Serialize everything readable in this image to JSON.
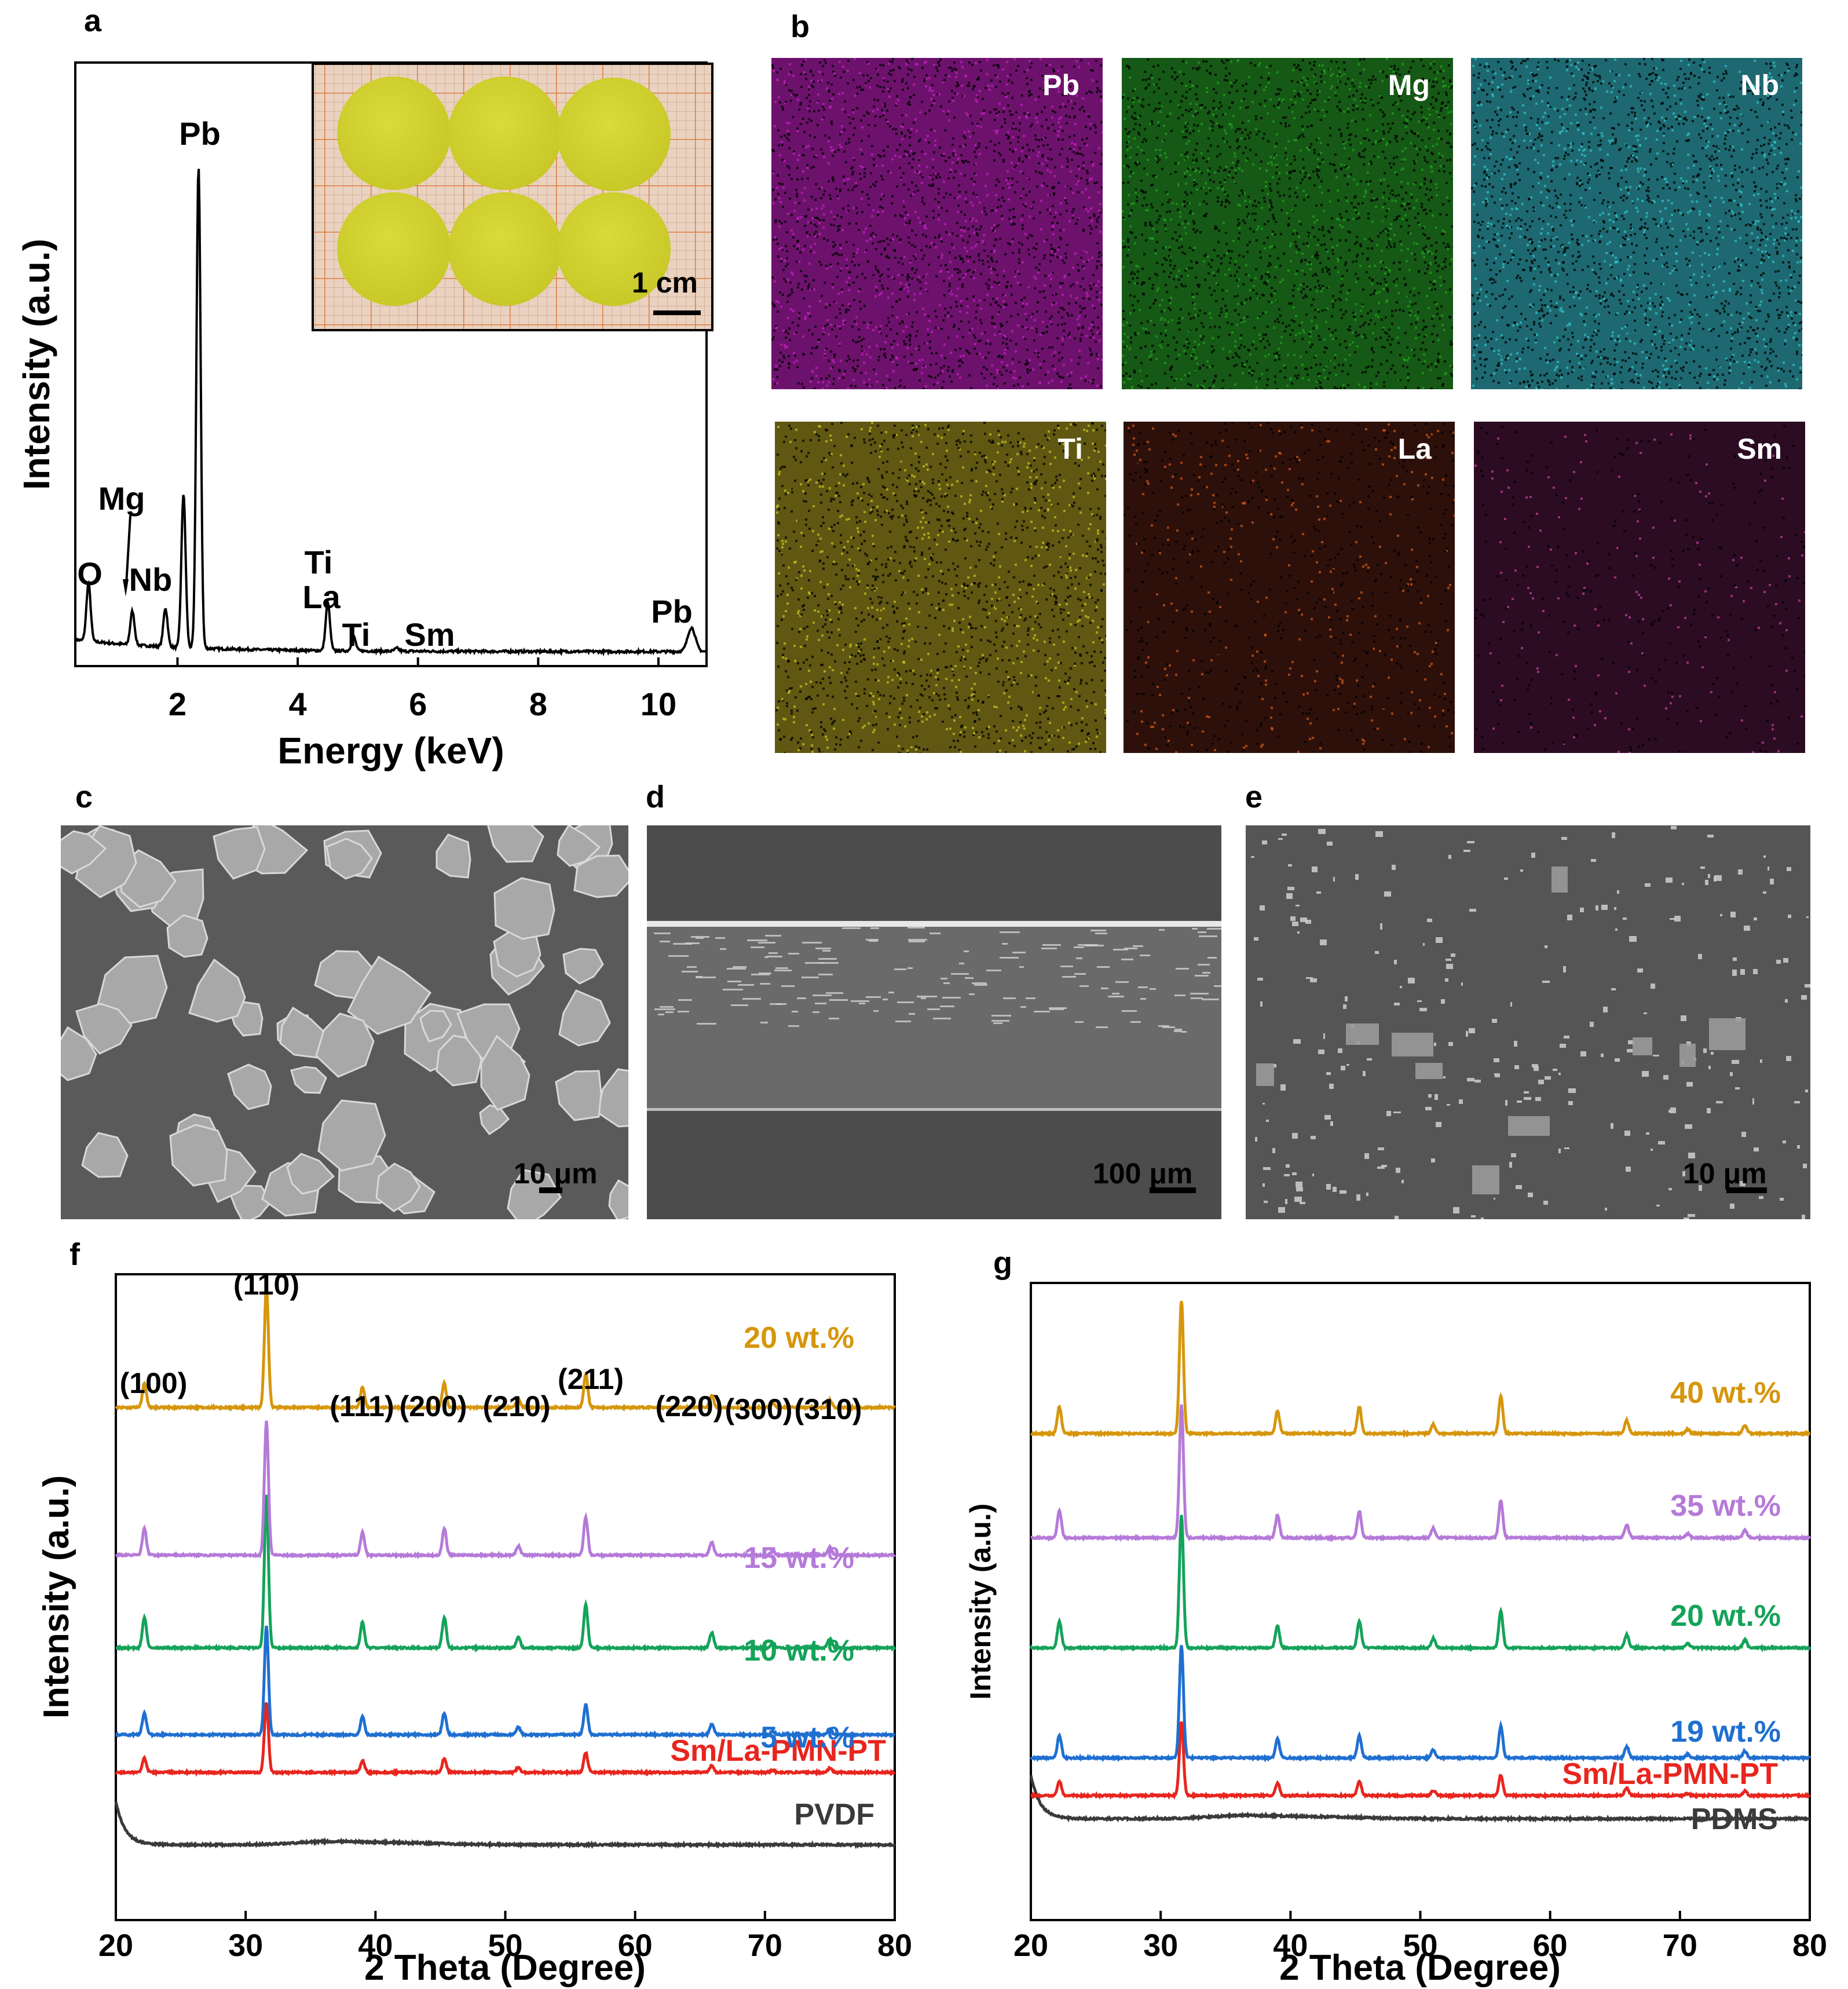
{
  "panels": {
    "a": {
      "letter": "a",
      "xlabel": "Energy (keV)",
      "ylabel": "Intensity (a.u.)",
      "inset_scale": "1 cm",
      "peaks": [
        "O",
        "Mg",
        "Nb",
        "Pb",
        "Ti",
        "La",
        "Ti",
        "Sm",
        "Pb"
      ]
    },
    "b": {
      "letter": "b",
      "maps": [
        {
          "label": "Pb",
          "color": "#c020c0"
        },
        {
          "label": "Mg",
          "color": "#20a020"
        },
        {
          "label": "Nb",
          "color": "#30c0c8"
        },
        {
          "label": "Ti",
          "color": "#c8c020"
        },
        {
          "label": "La",
          "color": "#d05818"
        },
        {
          "label": "Sm",
          "color": "#c040a0"
        }
      ]
    },
    "c": {
      "letter": "c",
      "scale": "10 μm"
    },
    "d": {
      "letter": "d",
      "scale": "100 μm"
    },
    "e": {
      "letter": "e",
      "scale": "10 μm"
    },
    "f": {
      "letter": "f",
      "xlabel": "2 Theta (Degree)",
      "ylabel": "Intensity (a.u.)"
    },
    "g": {
      "letter": "g",
      "xlabel": "2 Theta (Degree)",
      "ylabel": "Intensity (a.u.)"
    }
  },
  "chart_data": [
    {
      "id": "a",
      "type": "line",
      "xlabel": "Energy (keV)",
      "ylabel": "Intensity (a.u.)",
      "xlim": [
        0.3,
        10.8
      ],
      "ylim": [
        0,
        100
      ],
      "xticks": [
        2,
        4,
        6,
        8,
        10
      ],
      "peaks": [
        {
          "x": 0.52,
          "y": 12,
          "label": "O"
        },
        {
          "x": 1.25,
          "y": 7,
          "label": "Mg"
        },
        {
          "x": 1.8,
          "y": 8,
          "label": "Nb"
        },
        {
          "x": 2.1,
          "y": 32,
          "label": ""
        },
        {
          "x": 2.35,
          "y": 100,
          "label": "Pb"
        },
        {
          "x": 4.5,
          "y": 10,
          "label": "Ti La"
        },
        {
          "x": 4.93,
          "y": 3,
          "label": "Ti"
        },
        {
          "x": 5.65,
          "y": 0.6,
          "label": "Sm"
        },
        {
          "x": 10.55,
          "y": 5,
          "label": "Pb"
        }
      ]
    },
    {
      "id": "f",
      "type": "line",
      "xlabel": "2 Theta (Degree)",
      "ylabel": "Intensity (a.u.)",
      "xlim": [
        20,
        80
      ],
      "xticks": [
        20,
        30,
        40,
        50,
        60,
        70,
        80
      ],
      "hkl": [
        {
          "x": 22.2,
          "label": "(100)"
        },
        {
          "x": 31.6,
          "label": "(110)"
        },
        {
          "x": 39.0,
          "label": "(111)"
        },
        {
          "x": 45.3,
          "label": "(200)"
        },
        {
          "x": 51.0,
          "label": "(210)"
        },
        {
          "x": 56.2,
          "label": "(211)"
        },
        {
          "x": 65.9,
          "label": "(220)"
        },
        {
          "x": 70.6,
          "label": "(300)"
        },
        {
          "x": 75.0,
          "label": "(310)"
        }
      ],
      "peak_positions": [
        22.2,
        31.6,
        39.0,
        45.3,
        51.0,
        56.2,
        65.9,
        70.6,
        75.0
      ],
      "peak_rel_heights": [
        0.2,
        1.0,
        0.17,
        0.2,
        0.07,
        0.28,
        0.1,
        0.03,
        0.06
      ],
      "series": [
        {
          "name": "PVDF",
          "color": "#3a3a3a",
          "scale": 0
        },
        {
          "name": "Sm/La-PMN-PT",
          "color": "#e8251e",
          "scale": 0.55
        },
        {
          "name": "5 wt.%",
          "color": "#1f6fd1",
          "scale": 0.85
        },
        {
          "name": "10 wt.%",
          "color": "#14a35a",
          "scale": 1.2
        },
        {
          "name": "15 wt.%",
          "color": "#b57ad9",
          "scale": 1.05
        },
        {
          "name": "20 wt.%",
          "color": "#d6960c",
          "scale": 0.95
        }
      ]
    },
    {
      "id": "g",
      "type": "line",
      "xlabel": "2 Theta (Degree)",
      "ylabel": "Intensity (a.u.)",
      "xlim": [
        20,
        80
      ],
      "xticks": [
        20,
        30,
        40,
        50,
        60,
        70,
        80
      ],
      "peak_positions": [
        22.2,
        31.6,
        39.0,
        45.3,
        51.0,
        56.2,
        65.9,
        70.6,
        75.0
      ],
      "peak_rel_heights": [
        0.2,
        1.0,
        0.17,
        0.2,
        0.07,
        0.28,
        0.1,
        0.03,
        0.06
      ],
      "series": [
        {
          "name": "PDMS",
          "color": "#3a3a3a",
          "scale": 0
        },
        {
          "name": "Sm/La-PMN-PT",
          "color": "#e8251e",
          "scale": 0.55
        },
        {
          "name": "19 wt.%",
          "color": "#1f6fd1",
          "scale": 0.85
        },
        {
          "name": "20 wt.%",
          "color": "#14a35a",
          "scale": 1.0
        },
        {
          "name": "35 wt.%",
          "color": "#b57ad9",
          "scale": 1.0
        },
        {
          "name": "40 wt.%",
          "color": "#d6960c",
          "scale": 1.0
        }
      ]
    }
  ]
}
